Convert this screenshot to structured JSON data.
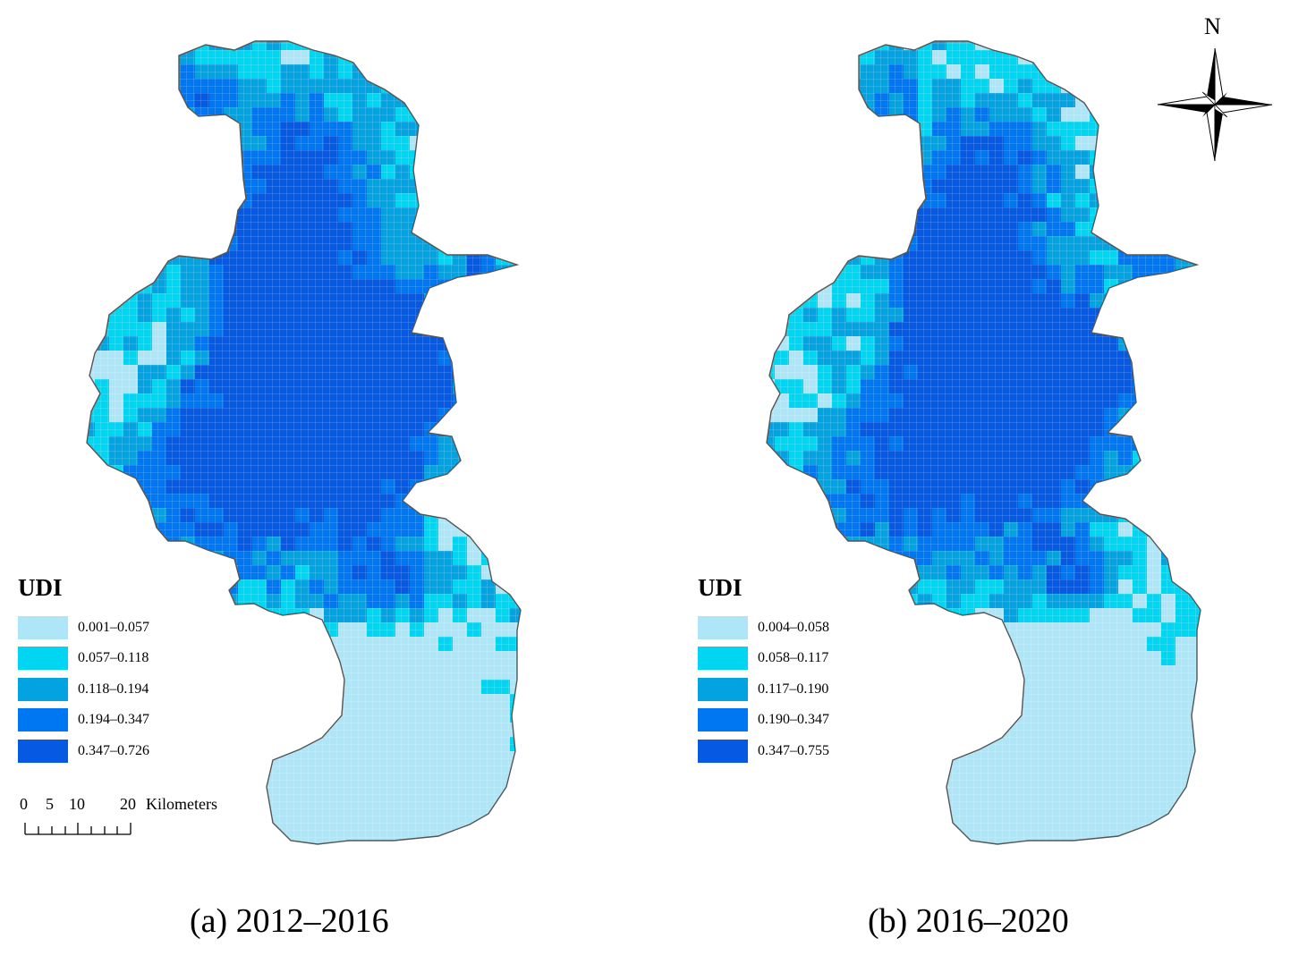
{
  "north_label": "N",
  "maps": [
    {
      "caption": "(a) 2012–2016",
      "legend": {
        "title": "UDI",
        "classes": [
          {
            "label": "0.001–0.057",
            "color": "#aee6f8"
          },
          {
            "label": "0.057–0.118",
            "color": "#00d6f2"
          },
          {
            "label": "0.118–0.194",
            "color": "#03a3e2"
          },
          {
            "label": "0.194–0.347",
            "color": "#0077f2"
          },
          {
            "label": "0.347–0.726",
            "color": "#0559e3"
          }
        ]
      }
    },
    {
      "caption": "(b) 2016–2020",
      "legend": {
        "title": "UDI",
        "classes": [
          {
            "label": "0.004–0.058",
            "color": "#aee6f8"
          },
          {
            "label": "0.058–0.117",
            "color": "#00d6f2"
          },
          {
            "label": "0.117–0.190",
            "color": "#03a3e2"
          },
          {
            "label": "0.190–0.347",
            "color": "#0077f2"
          },
          {
            "label": "0.347–0.755",
            "color": "#0559e3"
          }
        ]
      }
    }
  ],
  "scale_bar": {
    "ticks": [
      "0",
      "5",
      "10",
      "20"
    ],
    "unit": "Kilometers"
  }
}
